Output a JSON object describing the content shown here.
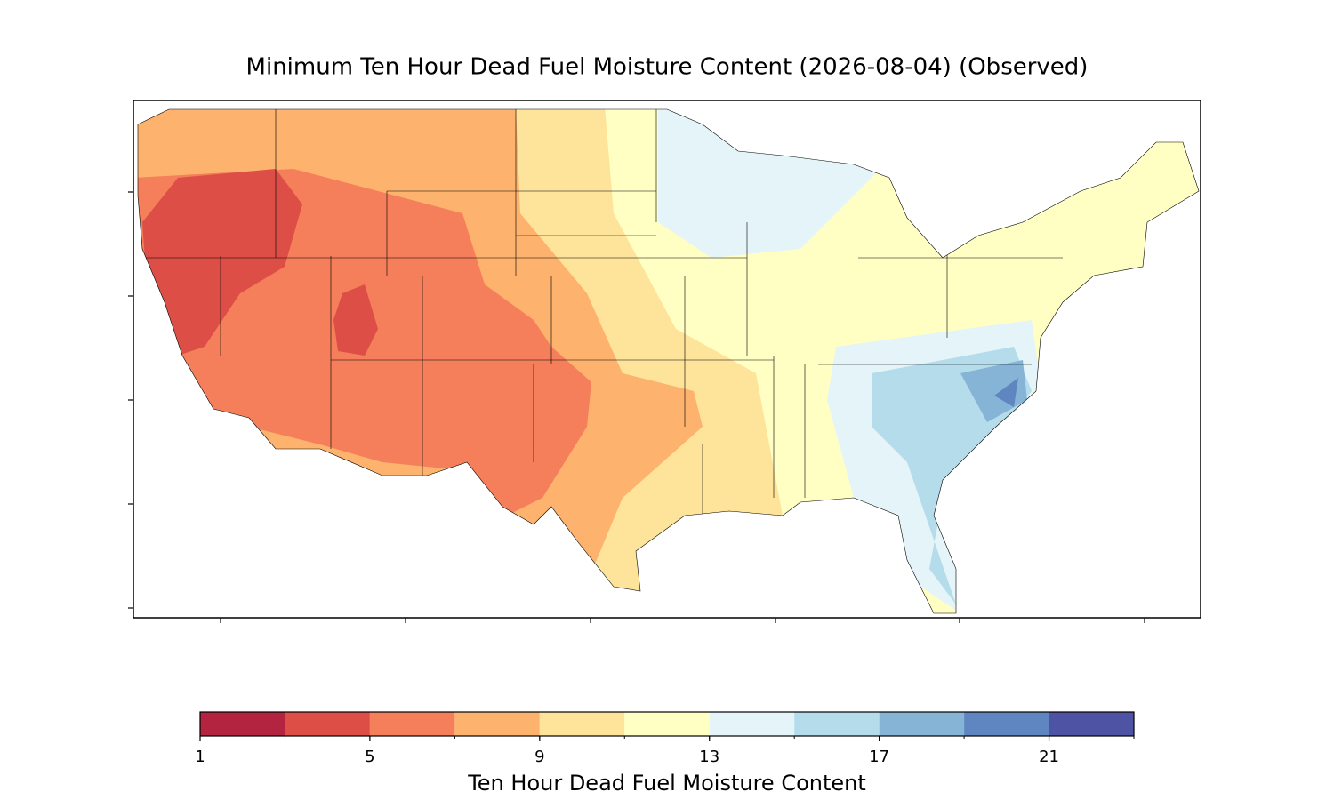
{
  "title": "Minimum Ten Hour Dead Fuel Moisture Content (2026-08-04) (Observed)",
  "colorbar": {
    "label": "Ten Hour Dead Fuel Moisture Content",
    "lim": [
      1,
      23
    ],
    "ticks": [
      1,
      5,
      9,
      13,
      17,
      21
    ],
    "levels": [
      1,
      3,
      5,
      7,
      9,
      11,
      13,
      15,
      17,
      19,
      21,
      23
    ],
    "colors": [
      "#b22440",
      "#dd4e47",
      "#f47f5a",
      "#fdb26d",
      "#fee39a",
      "#ffffc4",
      "#e4f4f8",
      "#b4dcea",
      "#85b4d6",
      "#5f86c0",
      "#4f53a3"
    ]
  }
}
